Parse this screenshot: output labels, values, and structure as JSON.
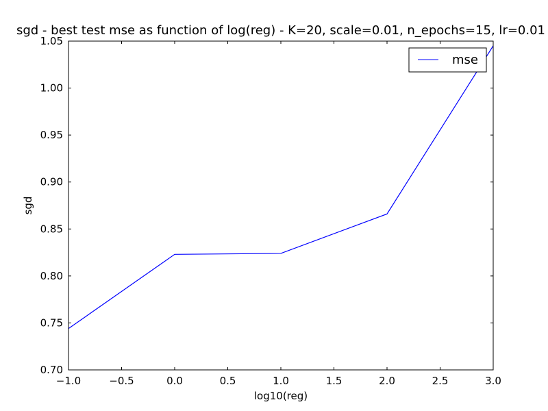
{
  "chart_data": {
    "type": "line",
    "title": "sgd - best test mse as function of log(reg) - K=20, scale=0.01, n_epochs=15, lr=0.01",
    "xlabel": "log10(reg)",
    "ylabel": "sgd",
    "xlim": [
      -1.0,
      3.0
    ],
    "ylim": [
      0.7,
      1.05
    ],
    "x_ticks": [
      "−1.0",
      "−0.5",
      "0.0",
      "0.5",
      "1.0",
      "1.5",
      "2.0",
      "2.5",
      "3.0"
    ],
    "y_ticks": [
      "0.70",
      "0.75",
      "0.80",
      "0.85",
      "0.90",
      "0.95",
      "1.00",
      "1.05"
    ],
    "grid": false,
    "legend_position": "top-right",
    "series": [
      {
        "name": "mse",
        "color": "#0000ff",
        "x": [
          -1,
          0,
          1,
          2,
          3
        ],
        "y": [
          0.744,
          0.823,
          0.824,
          0.866,
          1.045
        ]
      }
    ]
  }
}
